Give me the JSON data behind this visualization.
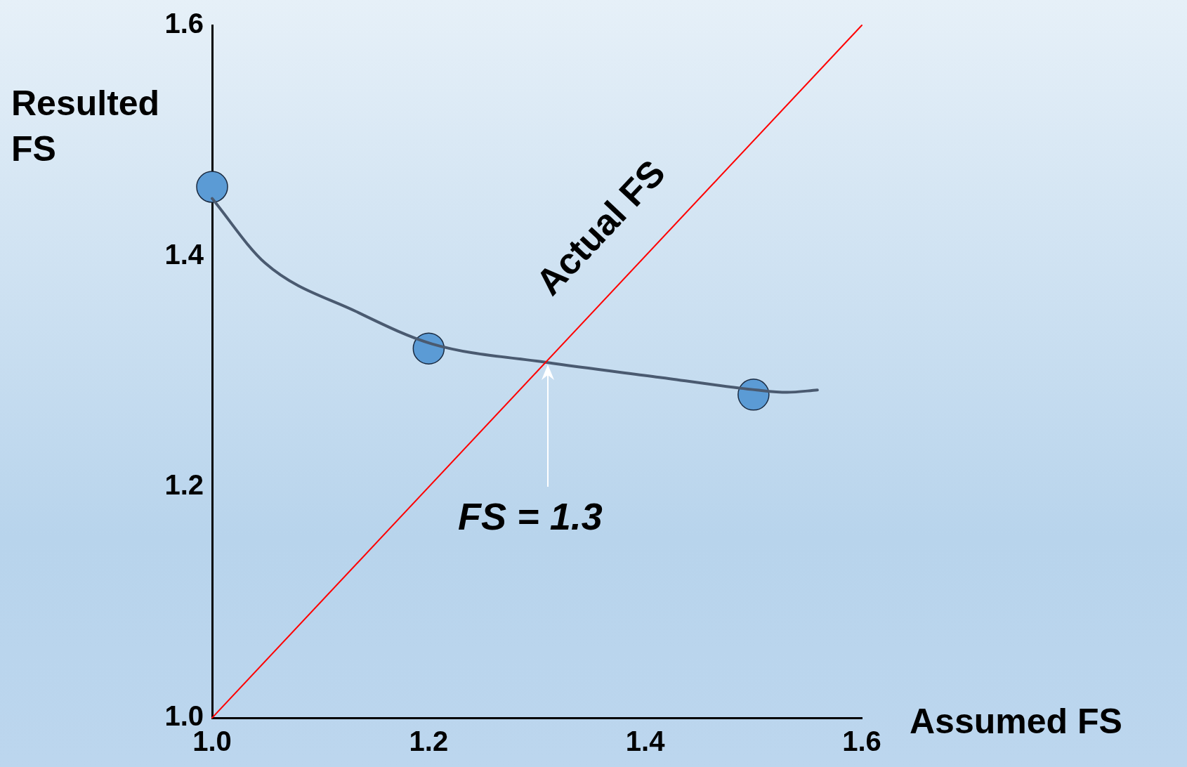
{
  "chart_data": {
    "type": "line",
    "xlabel": "Assumed FS",
    "ylabel": "Resulted FS",
    "xlim": [
      1.0,
      1.6
    ],
    "ylim": [
      1.0,
      1.6
    ],
    "xticks": [
      {
        "value": 1.0,
        "label": "1.0"
      },
      {
        "value": 1.2,
        "label": "1.2"
      },
      {
        "value": 1.4,
        "label": "1.4"
      },
      {
        "value": 1.6,
        "label": "1.6"
      }
    ],
    "yticks": [
      {
        "value": 1.0,
        "label": "1.0"
      },
      {
        "value": 1.2,
        "label": "1.2"
      },
      {
        "value": 1.4,
        "label": "1.4"
      },
      {
        "value": 1.6,
        "label": "1.6"
      }
    ],
    "grid": false,
    "legend": false,
    "annotations": [
      {
        "text": "FS = 1.3",
        "x": 1.31,
        "y": 1.307
      }
    ],
    "series": [
      {
        "name": "Actual FS",
        "type": "line",
        "color": "#ff0000",
        "marker": "none",
        "x": [
          1.0,
          1.6
        ],
        "values": [
          1.0,
          1.6
        ]
      },
      {
        "type": "line",
        "color": "#4a5a70",
        "marker": "none",
        "x": [
          1.0,
          1.049,
          1.133,
          1.203,
          1.308,
          1.413,
          1.503,
          1.531,
          1.559
        ],
        "values": [
          1.45,
          1.394,
          1.352,
          1.324,
          1.308,
          1.295,
          1.284,
          1.282,
          1.284
        ]
      },
      {
        "type": "scatter",
        "color": "#5b9bd5",
        "marker": "circle",
        "x": [
          1.0,
          1.2,
          1.5
        ],
        "values": [
          1.46,
          1.32,
          1.28
        ]
      }
    ]
  }
}
